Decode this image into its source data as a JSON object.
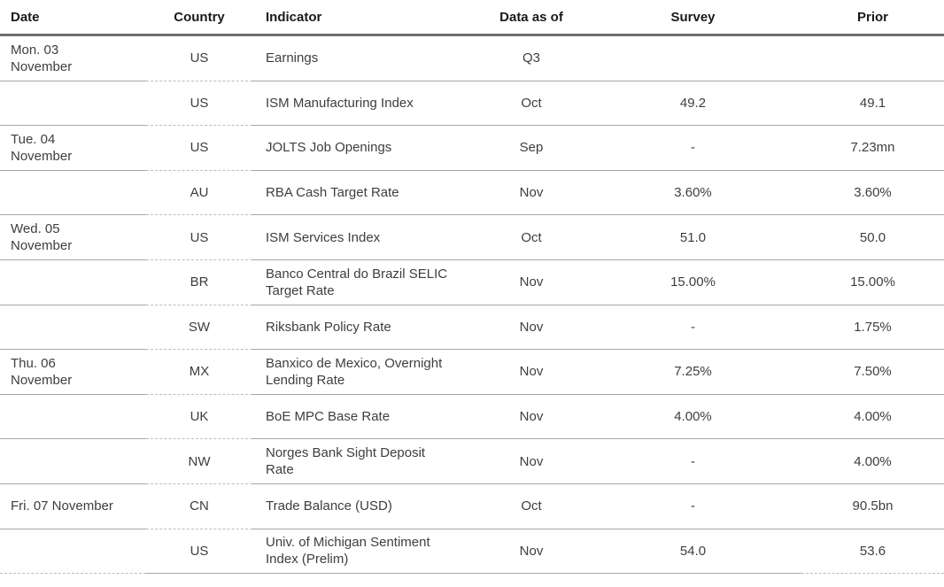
{
  "table": {
    "columns": [
      {
        "key": "date",
        "label": "Date"
      },
      {
        "key": "country",
        "label": "Country"
      },
      {
        "key": "indicator",
        "label": "Indicator"
      },
      {
        "key": "data_as_of",
        "label": "Data as of"
      },
      {
        "key": "survey",
        "label": "Survey"
      },
      {
        "key": "prior",
        "label": "Prior"
      }
    ],
    "rows": [
      {
        "date": [
          "Mon. 03",
          "November"
        ],
        "country": "US",
        "indicator": [
          "Earnings"
        ],
        "data_as_of": "Q3",
        "survey": "",
        "prior": ""
      },
      {
        "date": [],
        "country": "US",
        "indicator": [
          "ISM Manufacturing Index"
        ],
        "data_as_of": "Oct",
        "survey": "49.2",
        "prior": "49.1"
      },
      {
        "date": [
          "Tue. 04",
          "November"
        ],
        "country": "US",
        "indicator": [
          "JOLTS Job Openings"
        ],
        "data_as_of": "Sep",
        "survey": "-",
        "prior": "7.23mn"
      },
      {
        "date": [],
        "country": "AU",
        "indicator": [
          "RBA Cash Target Rate"
        ],
        "data_as_of": "Nov",
        "survey": "3.60%",
        "prior": "3.60%"
      },
      {
        "date": [
          "Wed. 05",
          "November"
        ],
        "country": "US",
        "indicator": [
          "ISM Services Index"
        ],
        "data_as_of": "Oct",
        "survey": "51.0",
        "prior": "50.0"
      },
      {
        "date": [],
        "country": "BR",
        "indicator": [
          "Banco Central do Brazil SELIC",
          "Target Rate"
        ],
        "data_as_of": "Nov",
        "survey": "15.00%",
        "prior": "15.00%"
      },
      {
        "date": [],
        "country": "SW",
        "indicator": [
          "Riksbank Policy Rate"
        ],
        "data_as_of": "Nov",
        "survey": "-",
        "prior": "1.75%"
      },
      {
        "date": [
          "Thu. 06",
          "November"
        ],
        "country": "MX",
        "indicator": [
          "Banxico de Mexico, Overnight",
          "Lending Rate"
        ],
        "data_as_of": "Nov",
        "survey": "7.25%",
        "prior": "7.50%"
      },
      {
        "date": [],
        "country": "UK",
        "indicator": [
          "BoE MPC Base Rate"
        ],
        "data_as_of": "Nov",
        "survey": "4.00%",
        "prior": "4.00%"
      },
      {
        "date": [],
        "country": "NW",
        "indicator": [
          "Norges Bank Sight Deposit",
          "Rate"
        ],
        "data_as_of": "Nov",
        "survey": "-",
        "prior": "4.00%"
      },
      {
        "date": [
          "Fri. 07 November"
        ],
        "country": "CN",
        "indicator": [
          "Trade Balance (USD)"
        ],
        "data_as_of": "Oct",
        "survey": "-",
        "prior": "90.5bn"
      },
      {
        "date": [],
        "country": "US",
        "indicator": [
          "Univ. of Michigan Sentiment",
          "Index (Prelim)"
        ],
        "data_as_of": "Nov",
        "survey": "54.0",
        "prior": "53.6"
      }
    ]
  },
  "colors": {
    "header_rule": "#6e6e6e",
    "row_rule_solid": "#a6a6a6",
    "row_rule_dashed": "#bdbdbd",
    "header_text": "#1a1a1a",
    "body_text": "#3e3e3e",
    "background": "#ffffff"
  }
}
